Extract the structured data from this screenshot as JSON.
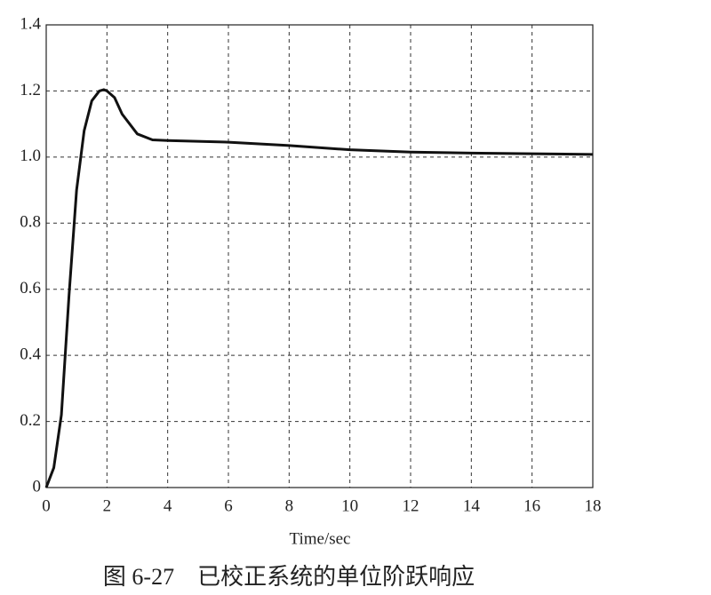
{
  "chart_data": {
    "type": "line",
    "x_label": "Time/sec",
    "caption": "图 6-27　已校正系统的单位阶跃响应",
    "x": [
      0,
      0.25,
      0.5,
      0.75,
      1.0,
      1.25,
      1.5,
      1.75,
      1.9,
      2.0,
      2.25,
      2.5,
      3.0,
      3.5,
      4,
      6,
      8,
      10,
      12,
      14,
      16,
      18
    ],
    "series": [
      {
        "color": "#111111",
        "values": [
          0,
          0.06,
          0.22,
          0.58,
          0.9,
          1.08,
          1.17,
          1.2,
          1.204,
          1.2,
          1.18,
          1.13,
          1.07,
          1.052,
          1.05,
          1.045,
          1.035,
          1.022,
          1.015,
          1.012,
          1.01,
          1.008
        ]
      }
    ],
    "xlim": [
      0,
      18
    ],
    "xticks": [
      0,
      2,
      4,
      6,
      8,
      10,
      12,
      14,
      16,
      18
    ],
    "ylim": [
      0,
      1.4
    ],
    "yticks": [
      0,
      0.2,
      0.4,
      0.6,
      0.8,
      {
        "value": 1,
        "label": "1.0"
      },
      1.2,
      1.4
    ],
    "grid": true
  }
}
